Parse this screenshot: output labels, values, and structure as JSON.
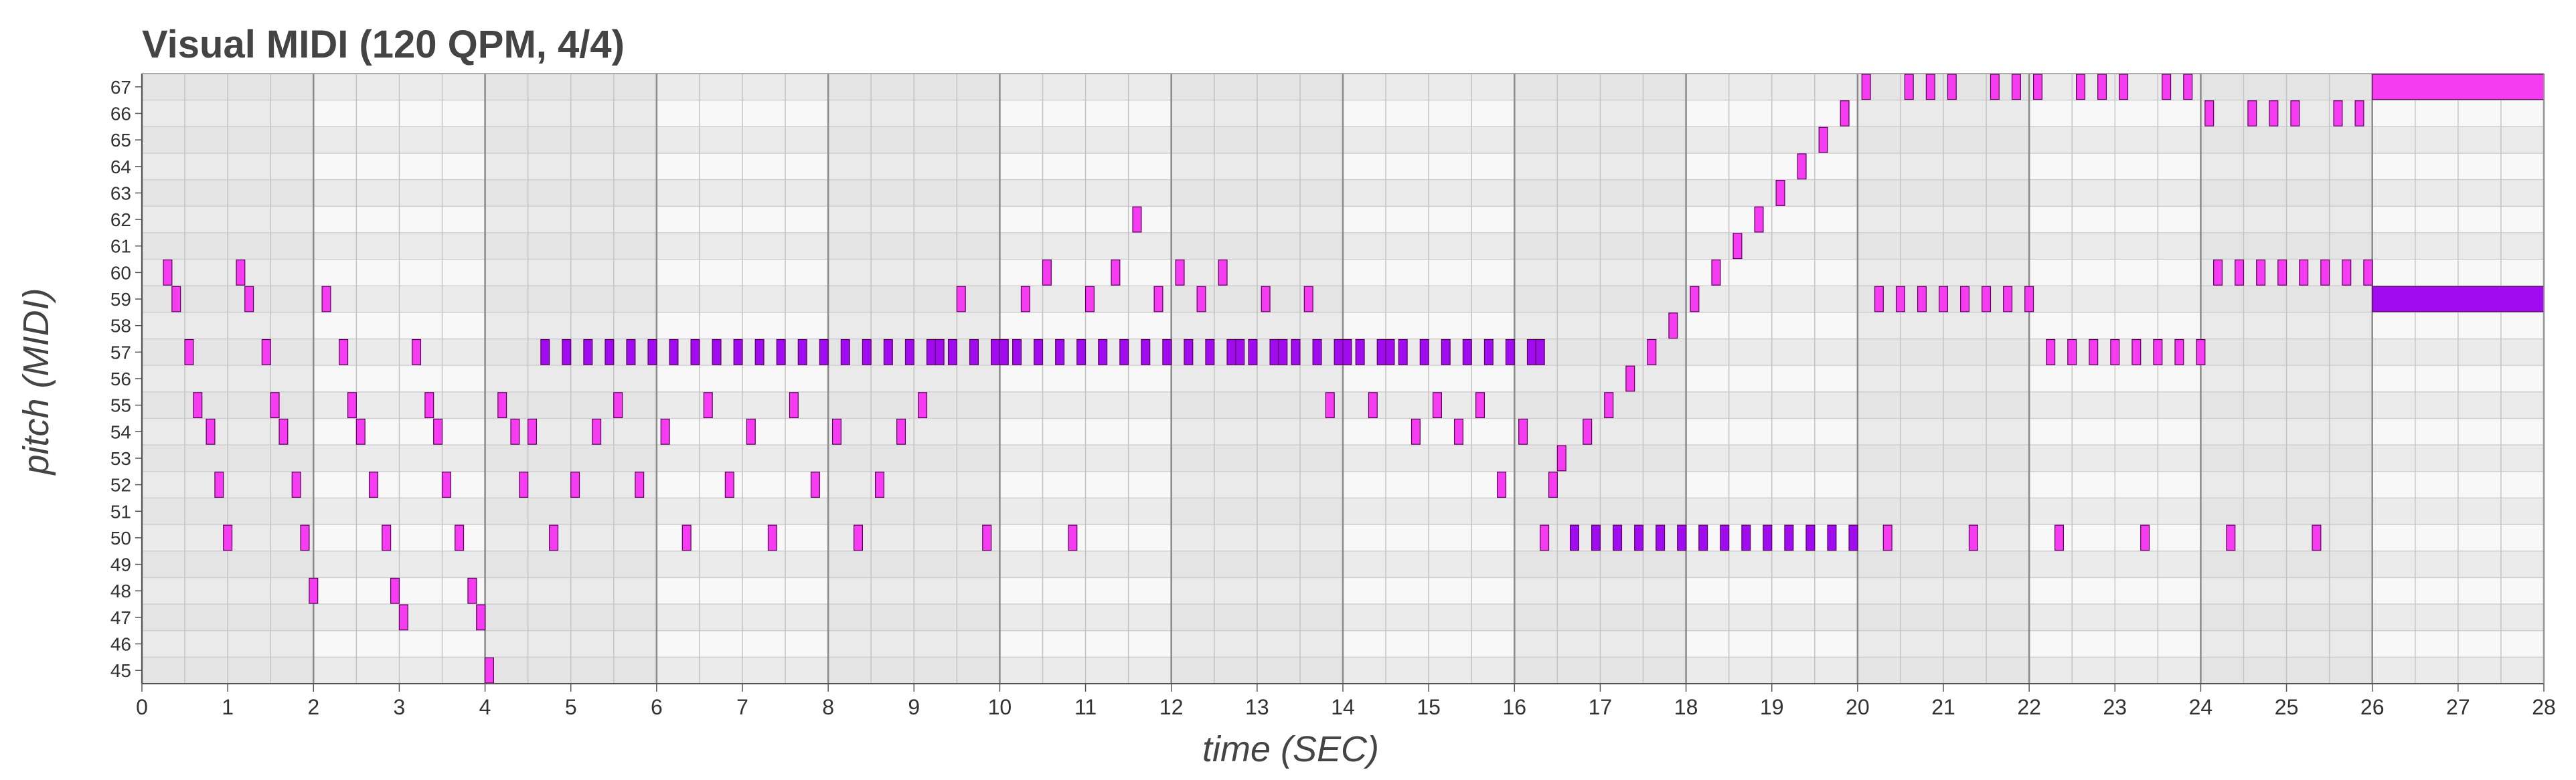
{
  "chart_data": {
    "type": "piano-roll",
    "title": "Visual MIDI (120 QPM, 4/4)",
    "xlabel": "time (SEC)",
    "ylabel": "pitch (MIDI)",
    "xlim": [
      0,
      28
    ],
    "ylim": [
      45,
      67
    ],
    "x_ticks": [
      0,
      1,
      2,
      3,
      4,
      5,
      6,
      7,
      8,
      9,
      10,
      11,
      12,
      13,
      14,
      15,
      16,
      17,
      18,
      19,
      20,
      21,
      22,
      23,
      24,
      25,
      26,
      27,
      28
    ],
    "y_ticks": [
      45,
      46,
      47,
      48,
      49,
      50,
      51,
      52,
      53,
      54,
      55,
      56,
      57,
      58,
      59,
      60,
      61,
      62,
      63,
      64,
      65,
      66,
      67
    ],
    "beat_seconds": 0.5,
    "measure_seconds": 2,
    "shaded_measures": [
      [
        0,
        2
      ],
      [
        4,
        6
      ],
      [
        8,
        10
      ],
      [
        12,
        14
      ],
      [
        16,
        18
      ],
      [
        20,
        22
      ],
      [
        24,
        26
      ]
    ],
    "colors": {
      "note_light": "#f53cf0",
      "note_dark": "#a00cf0",
      "shade_band": "#dedede",
      "row_even": "#ebebeb",
      "row_odd": "#f8f8f8"
    },
    "series": [
      {
        "color": "note_light",
        "notes": [
          [
            0.25,
            0.35,
            60
          ],
          [
            0.35,
            0.45,
            59
          ],
          [
            0.5,
            0.6,
            57
          ],
          [
            0.6,
            0.7,
            55
          ],
          [
            0.75,
            0.85,
            54
          ],
          [
            0.85,
            0.95,
            52
          ],
          [
            0.95,
            1.05,
            50
          ],
          [
            1.1,
            1.2,
            60
          ],
          [
            1.2,
            1.3,
            59
          ],
          [
            1.4,
            1.5,
            57
          ],
          [
            1.5,
            1.6,
            55
          ],
          [
            1.6,
            1.7,
            54
          ],
          [
            1.75,
            1.85,
            52
          ],
          [
            1.85,
            1.95,
            50
          ],
          [
            1.95,
            2.05,
            48
          ],
          [
            2.1,
            2.2,
            59
          ],
          [
            2.3,
            2.4,
            57
          ],
          [
            2.4,
            2.5,
            55
          ],
          [
            2.5,
            2.6,
            54
          ],
          [
            2.65,
            2.75,
            52
          ],
          [
            2.8,
            2.9,
            50
          ],
          [
            2.9,
            3.0,
            48
          ],
          [
            3.0,
            3.1,
            47
          ],
          [
            3.15,
            3.25,
            57
          ],
          [
            3.3,
            3.4,
            55
          ],
          [
            3.4,
            3.5,
            54
          ],
          [
            3.5,
            3.6,
            52
          ],
          [
            3.65,
            3.75,
            50
          ],
          [
            3.8,
            3.9,
            48
          ],
          [
            3.9,
            4.0,
            47
          ],
          [
            4.0,
            4.1,
            45
          ],
          [
            4.15,
            4.25,
            55
          ],
          [
            4.3,
            4.4,
            54
          ],
          [
            4.4,
            4.5,
            52
          ],
          [
            4.5,
            4.6,
            54
          ],
          [
            4.75,
            4.85,
            50
          ],
          [
            5.0,
            5.1,
            52
          ],
          [
            5.25,
            5.35,
            54
          ],
          [
            5.5,
            5.6,
            55
          ],
          [
            5.75,
            5.85,
            52
          ],
          [
            6.05,
            6.15,
            54
          ],
          [
            6.3,
            6.4,
            50
          ],
          [
            6.55,
            6.65,
            55
          ],
          [
            6.8,
            6.9,
            52
          ],
          [
            7.05,
            7.15,
            54
          ],
          [
            7.3,
            7.4,
            50
          ],
          [
            7.55,
            7.65,
            55
          ],
          [
            7.8,
            7.9,
            52
          ],
          [
            8.05,
            8.15,
            54
          ],
          [
            8.3,
            8.4,
            50
          ],
          [
            8.55,
            8.65,
            52
          ],
          [
            8.8,
            8.9,
            54
          ],
          [
            9.05,
            9.15,
            55
          ],
          [
            9.5,
            9.6,
            59
          ],
          [
            9.8,
            9.9,
            50
          ],
          [
            10.25,
            10.35,
            59
          ],
          [
            10.5,
            10.6,
            60
          ],
          [
            10.8,
            10.9,
            50
          ],
          [
            11.0,
            11.1,
            59
          ],
          [
            11.3,
            11.4,
            60
          ],
          [
            11.55,
            11.65,
            62
          ],
          [
            11.8,
            11.9,
            59
          ],
          [
            12.05,
            12.15,
            60
          ],
          [
            12.3,
            12.4,
            59
          ],
          [
            12.55,
            12.65,
            60
          ],
          [
            13.05,
            13.15,
            59
          ],
          [
            13.55,
            13.65,
            59
          ],
          [
            13.8,
            13.9,
            55
          ],
          [
            14.3,
            14.4,
            55
          ],
          [
            14.8,
            14.9,
            54
          ],
          [
            15.05,
            15.15,
            55
          ],
          [
            15.3,
            15.4,
            54
          ],
          [
            15.55,
            15.65,
            55
          ],
          [
            15.8,
            15.9,
            52
          ],
          [
            16.05,
            16.15,
            54
          ],
          [
            16.3,
            16.4,
            50
          ],
          [
            16.4,
            16.5,
            52
          ],
          [
            16.5,
            16.6,
            53
          ],
          [
            16.8,
            16.9,
            54
          ],
          [
            17.05,
            17.15,
            55
          ],
          [
            17.3,
            17.4,
            56
          ],
          [
            17.55,
            17.65,
            57
          ],
          [
            17.8,
            17.9,
            58
          ],
          [
            18.05,
            18.15,
            59
          ],
          [
            18.3,
            18.4,
            60
          ],
          [
            18.55,
            18.65,
            61
          ],
          [
            18.8,
            18.9,
            62
          ],
          [
            19.05,
            19.15,
            63
          ],
          [
            19.3,
            19.4,
            64
          ],
          [
            19.55,
            19.65,
            65
          ],
          [
            19.8,
            19.9,
            66
          ],
          [
            20.05,
            20.15,
            67
          ],
          [
            20.2,
            20.3,
            59
          ],
          [
            20.3,
            20.4,
            50
          ],
          [
            20.45,
            20.55,
            59
          ],
          [
            20.55,
            20.65,
            67
          ],
          [
            20.7,
            20.8,
            59
          ],
          [
            20.8,
            20.9,
            67
          ],
          [
            20.95,
            21.05,
            59
          ],
          [
            21.05,
            21.15,
            67
          ],
          [
            21.2,
            21.3,
            59
          ],
          [
            21.3,
            21.4,
            50
          ],
          [
            21.45,
            21.55,
            59
          ],
          [
            21.55,
            21.65,
            67
          ],
          [
            21.7,
            21.8,
            59
          ],
          [
            21.8,
            21.9,
            67
          ],
          [
            21.95,
            22.05,
            59
          ],
          [
            22.05,
            22.15,
            67
          ],
          [
            22.2,
            22.3,
            57
          ],
          [
            22.3,
            22.4,
            50
          ],
          [
            22.45,
            22.55,
            57
          ],
          [
            22.55,
            22.65,
            67
          ],
          [
            22.7,
            22.8,
            57
          ],
          [
            22.8,
            22.9,
            67
          ],
          [
            22.95,
            23.05,
            57
          ],
          [
            23.05,
            23.15,
            67
          ],
          [
            23.2,
            23.3,
            57
          ],
          [
            23.3,
            23.4,
            50
          ],
          [
            23.45,
            23.55,
            57
          ],
          [
            23.55,
            23.65,
            67
          ],
          [
            23.7,
            23.8,
            57
          ],
          [
            23.8,
            23.9,
            67
          ],
          [
            23.95,
            24.05,
            57
          ],
          [
            24.05,
            24.15,
            66
          ],
          [
            24.15,
            24.25,
            60
          ],
          [
            24.3,
            24.4,
            50
          ],
          [
            24.4,
            24.5,
            60
          ],
          [
            24.55,
            24.65,
            66
          ],
          [
            24.65,
            24.75,
            60
          ],
          [
            24.8,
            24.9,
            66
          ],
          [
            24.9,
            25.0,
            60
          ],
          [
            25.05,
            25.15,
            66
          ],
          [
            25.15,
            25.25,
            60
          ],
          [
            25.3,
            25.4,
            50
          ],
          [
            25.4,
            25.5,
            60
          ],
          [
            25.55,
            25.65,
            66
          ],
          [
            25.65,
            25.75,
            60
          ],
          [
            25.8,
            25.9,
            66
          ],
          [
            25.9,
            26.0,
            60
          ],
          [
            26.0,
            28.0,
            67
          ]
        ]
      },
      {
        "color": "note_dark",
        "notes": [
          [
            4.65,
            4.75,
            57
          ],
          [
            4.9,
            5.0,
            57
          ],
          [
            5.15,
            5.25,
            57
          ],
          [
            5.4,
            5.5,
            57
          ],
          [
            5.65,
            5.75,
            57
          ],
          [
            5.9,
            6.0,
            57
          ],
          [
            6.15,
            6.25,
            57
          ],
          [
            6.4,
            6.5,
            57
          ],
          [
            6.65,
            6.75,
            57
          ],
          [
            6.9,
            7.0,
            57
          ],
          [
            7.15,
            7.25,
            57
          ],
          [
            7.4,
            7.5,
            57
          ],
          [
            7.65,
            7.75,
            57
          ],
          [
            7.9,
            8.0,
            57
          ],
          [
            8.15,
            8.25,
            57
          ],
          [
            8.4,
            8.5,
            57
          ],
          [
            8.65,
            8.75,
            57
          ],
          [
            8.9,
            9.0,
            57
          ],
          [
            9.15,
            9.25,
            57
          ],
          [
            9.25,
            9.35,
            57
          ],
          [
            9.4,
            9.5,
            57
          ],
          [
            9.65,
            9.75,
            57
          ],
          [
            9.9,
            10.0,
            57
          ],
          [
            10.0,
            10.1,
            57
          ],
          [
            10.15,
            10.25,
            57
          ],
          [
            10.4,
            10.5,
            57
          ],
          [
            10.65,
            10.75,
            57
          ],
          [
            10.9,
            11.0,
            57
          ],
          [
            11.15,
            11.25,
            57
          ],
          [
            11.4,
            11.5,
            57
          ],
          [
            11.65,
            11.75,
            57
          ],
          [
            11.9,
            12.0,
            57
          ],
          [
            12.15,
            12.25,
            57
          ],
          [
            12.4,
            12.5,
            57
          ],
          [
            12.65,
            12.75,
            57
          ],
          [
            12.75,
            12.85,
            57
          ],
          [
            12.9,
            13.0,
            57
          ],
          [
            13.15,
            13.25,
            57
          ],
          [
            13.25,
            13.35,
            57
          ],
          [
            13.4,
            13.5,
            57
          ],
          [
            13.65,
            13.75,
            57
          ],
          [
            13.9,
            14.0,
            57
          ],
          [
            14.0,
            14.1,
            57
          ],
          [
            14.15,
            14.25,
            57
          ],
          [
            14.4,
            14.5,
            57
          ],
          [
            14.5,
            14.6,
            57
          ],
          [
            14.65,
            14.75,
            57
          ],
          [
            14.9,
            15.0,
            57
          ],
          [
            15.15,
            15.25,
            57
          ],
          [
            15.4,
            15.5,
            57
          ],
          [
            15.65,
            15.75,
            57
          ],
          [
            15.9,
            16.0,
            57
          ],
          [
            16.15,
            16.25,
            57
          ],
          [
            16.25,
            16.35,
            57
          ],
          [
            16.65,
            16.75,
            50
          ],
          [
            16.9,
            17.0,
            50
          ],
          [
            17.15,
            17.25,
            50
          ],
          [
            17.4,
            17.5,
            50
          ],
          [
            17.65,
            17.75,
            50
          ],
          [
            17.9,
            18.0,
            50
          ],
          [
            18.15,
            18.25,
            50
          ],
          [
            18.4,
            18.5,
            50
          ],
          [
            18.65,
            18.75,
            50
          ],
          [
            18.9,
            19.0,
            50
          ],
          [
            19.15,
            19.25,
            50
          ],
          [
            19.4,
            19.5,
            50
          ],
          [
            19.65,
            19.75,
            50
          ],
          [
            19.9,
            20.0,
            50
          ],
          [
            26.0,
            28.0,
            59
          ]
        ]
      }
    ]
  }
}
